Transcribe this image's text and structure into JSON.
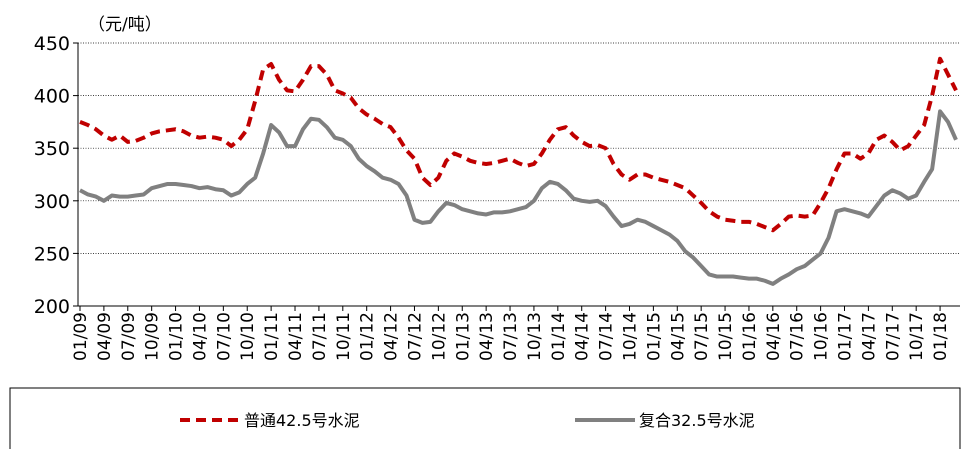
{
  "chart_data": {
    "type": "line",
    "y_label": "（元/吨）",
    "categories": [
      "01/09",
      null,
      null,
      "04/09",
      null,
      null,
      "07/09",
      null,
      null,
      "10/09",
      null,
      null,
      "01/10",
      null,
      null,
      "04/10",
      null,
      null,
      "07/10",
      null,
      null,
      "10/10",
      null,
      null,
      "01/11",
      null,
      null,
      "04/11",
      null,
      null,
      "07/11",
      null,
      null,
      "10/11",
      null,
      null,
      "01/12",
      null,
      null,
      "04/12",
      null,
      null,
      "07/12",
      null,
      null,
      "10/12",
      null,
      null,
      "01/13",
      null,
      null,
      "04/13",
      null,
      null,
      "07/13",
      null,
      null,
      "10/13",
      null,
      null,
      "01/14",
      null,
      null,
      "04/14",
      null,
      null,
      "07/14",
      null,
      null,
      "10/14",
      null,
      null,
      "01/15",
      null,
      null,
      "04/15",
      null,
      null,
      "07/15",
      null,
      null,
      "10/15",
      null,
      null,
      "01/16",
      null,
      null,
      "04/16",
      null,
      null,
      "07/16",
      null,
      null,
      "10/16",
      null,
      null,
      "01/17",
      null,
      null,
      "04/17",
      null,
      null,
      "07/17",
      null,
      null,
      "10/17",
      null,
      null,
      "01/18",
      null,
      null
    ],
    "series": [
      {
        "name": "普通42.5号水泥",
        "color": "#c00000",
        "line_style": "dashed",
        "values": [
          375,
          372,
          368,
          362,
          358,
          362,
          356,
          357,
          360,
          364,
          366,
          367,
          368,
          366,
          362,
          360,
          361,
          360,
          358,
          352,
          358,
          368,
          395,
          425,
          430,
          415,
          405,
          404,
          415,
          428,
          428,
          420,
          405,
          402,
          398,
          388,
          382,
          378,
          373,
          370,
          360,
          348,
          340,
          322,
          315,
          322,
          338,
          345,
          342,
          338,
          336,
          335,
          336,
          338,
          340,
          336,
          333,
          335,
          345,
          358,
          368,
          370,
          362,
          356,
          352,
          353,
          350,
          335,
          325,
          320,
          325,
          325,
          322,
          320,
          318,
          315,
          312,
          305,
          298,
          290,
          285,
          282,
          281,
          280,
          280,
          278,
          275,
          272,
          278,
          285,
          286,
          285,
          286,
          298,
          312,
          330,
          345,
          345,
          340,
          345,
          358,
          362,
          356,
          348,
          352,
          362,
          372,
          400,
          435,
          420,
          405
        ]
      },
      {
        "name": "复合32.5号水泥",
        "color": "#808080",
        "line_style": "solid",
        "values": [
          310,
          306,
          304,
          300,
          305,
          304,
          304,
          305,
          306,
          312,
          314,
          316,
          316,
          315,
          314,
          312,
          313,
          311,
          310,
          305,
          308,
          316,
          322,
          345,
          372,
          365,
          352,
          352,
          368,
          378,
          377,
          370,
          360,
          358,
          352,
          340,
          333,
          328,
          322,
          320,
          316,
          305,
          282,
          279,
          280,
          290,
          298,
          296,
          292,
          290,
          288,
          287,
          289,
          289,
          290,
          292,
          294,
          300,
          312,
          318,
          316,
          310,
          302,
          300,
          299,
          300,
          295,
          285,
          276,
          278,
          282,
          280,
          276,
          272,
          268,
          262,
          252,
          246,
          238,
          230,
          228,
          228,
          228,
          227,
          226,
          226,
          224,
          221,
          226,
          230,
          235,
          238,
          244,
          250,
          265,
          290,
          292,
          290,
          288,
          285,
          295,
          305,
          310,
          307,
          302,
          305,
          318,
          330,
          385,
          375,
          358
        ]
      }
    ],
    "ylim": [
      200,
      450
    ],
    "yticks": [
      200,
      250,
      300,
      350,
      400,
      450
    ],
    "grid": true
  }
}
